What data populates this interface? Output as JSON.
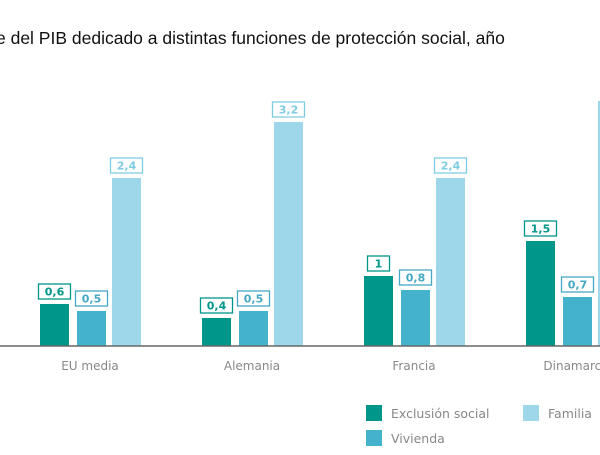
{
  "title": "e del PIB dedicado a distintas funciones de protección social, año",
  "chart_data": {
    "type": "bar",
    "title": "e del PIB dedicado a distintas funciones de protección social, año",
    "categories": [
      "EU media",
      "Alemania",
      "Francia",
      "Dinamarca"
    ],
    "series": [
      {
        "name": "Exclusión social",
        "values": [
          0.6,
          0.4,
          1,
          1.5
        ],
        "labels": [
          "0,6",
          "0,4",
          "1",
          "1,5"
        ],
        "color": "#00968a"
      },
      {
        "name": "Vivienda",
        "values": [
          0.5,
          0.5,
          0.8,
          0.7
        ],
        "labels": [
          "0,5",
          "0,5",
          "0,8",
          "0,7"
        ],
        "color": "#45b2cc"
      },
      {
        "name": "Familia",
        "values": [
          2.4,
          3.2,
          2.4,
          3.5
        ],
        "labels": [
          "2,4",
          "3,2",
          "2,4",
          ""
        ],
        "color": "#9ed6ea"
      }
    ],
    "ylim": [
      0,
      3.5
    ],
    "grid": false,
    "legend": "bottom-right"
  }
}
